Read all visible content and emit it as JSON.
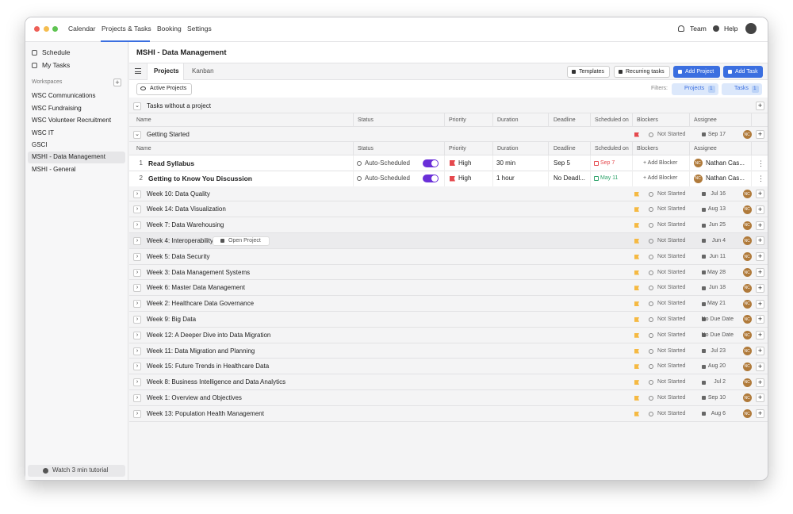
{
  "nav": {
    "items": [
      "Calendar",
      "Projects & Tasks",
      "Booking",
      "Settings"
    ],
    "team": "Team",
    "help": "Help"
  },
  "sidebar": {
    "top": [
      "Schedule",
      "My Tasks"
    ],
    "workspaces_label": "Workspaces",
    "workspaces": [
      "WSC Communications",
      "WSC Fundraising",
      "WSC Volunteer Recruitment",
      "WSC IT",
      "GSCI",
      "MSHI - Data Management",
      "MSHI - General"
    ],
    "footer": "Watch 3 min tutorial"
  },
  "header": {
    "title": "MSHI - Data Management"
  },
  "tabs": [
    "Projects",
    "Kanban"
  ],
  "toolbar": {
    "buttons": [
      "Templates",
      "Recurring tasks",
      "Add Project",
      "Add Task"
    ],
    "active_filter": "Active Projects",
    "filters_label": "Filters:",
    "filters": [
      {
        "label": "Projects",
        "count": 1
      },
      {
        "label": "Tasks",
        "count": 1
      }
    ]
  },
  "columns": [
    "Name",
    "Status",
    "Priority",
    "Duration",
    "Deadline",
    "Scheduled on",
    "Blockers",
    "Assignee"
  ],
  "group": "Tasks without a project",
  "avatar_initials": "NC",
  "getting_started": {
    "name": "Getting Started",
    "status": "Not Started",
    "date": "Sep 17"
  },
  "tasks": [
    {
      "index": 1,
      "name": "Read Syllabus",
      "status": "Auto-Scheduled",
      "priority": "High",
      "duration": "30 min",
      "deadline": "Sep 5",
      "scheduled": "Sep 7",
      "blocker": "+ Add Blocker",
      "assignee": "Nathan Cas..."
    },
    {
      "index": 2,
      "name": "Getting to Know You Discussion",
      "status": "Auto-Scheduled",
      "priority": "High",
      "duration": "1 hour",
      "deadline": "No Deadl...",
      "scheduled": "May 11",
      "blocker": "+ Add Blocker",
      "assignee": "Nathan Cas..."
    }
  ],
  "hover_action": "Open Project",
  "projects": [
    {
      "name": "Week 10: Data Quality",
      "status": "Not Started",
      "date": "Jul 16"
    },
    {
      "name": "Week 14: Data Visualization",
      "status": "Not Started",
      "date": "Aug 13"
    },
    {
      "name": "Week 7: Data Warehousing",
      "status": "Not Started",
      "date": "Jun 25"
    },
    {
      "name": "Week 4: Interoperability",
      "status": "Not Started",
      "date": "Jun 4"
    },
    {
      "name": "Week 5: Data Security",
      "status": "Not Started",
      "date": "Jun 11"
    },
    {
      "name": "Week 3: Data Management Systems",
      "status": "Not Started",
      "date": "May 28"
    },
    {
      "name": "Week 6: Master Data Management",
      "status": "Not Started",
      "date": "Jun 18"
    },
    {
      "name": "Week 2: Healthcare Data Governance",
      "status": "Not Started",
      "date": "May 21"
    },
    {
      "name": "Week 9: Big Data",
      "status": "Not Started",
      "date": "No Due Date"
    },
    {
      "name": "Week 12: A Deeper Dive into Data Migration",
      "status": "Not Started",
      "date": "No Due Date"
    },
    {
      "name": "Week 11: Data Migration and Planning",
      "status": "Not Started",
      "date": "Jul 23"
    },
    {
      "name": "Week 15: Future Trends in Healthcare Data",
      "status": "Not Started",
      "date": "Aug 20"
    },
    {
      "name": "Week 8: Business Intelligence and Data Analytics",
      "status": "Not Started",
      "date": "Jul 2"
    },
    {
      "name": "Week 1: Overview and Objectives",
      "status": "Not Started",
      "date": "Sep 10"
    },
    {
      "name": "Week 13: Population Health Management",
      "status": "Not Started",
      "date": "Aug 6"
    }
  ]
}
